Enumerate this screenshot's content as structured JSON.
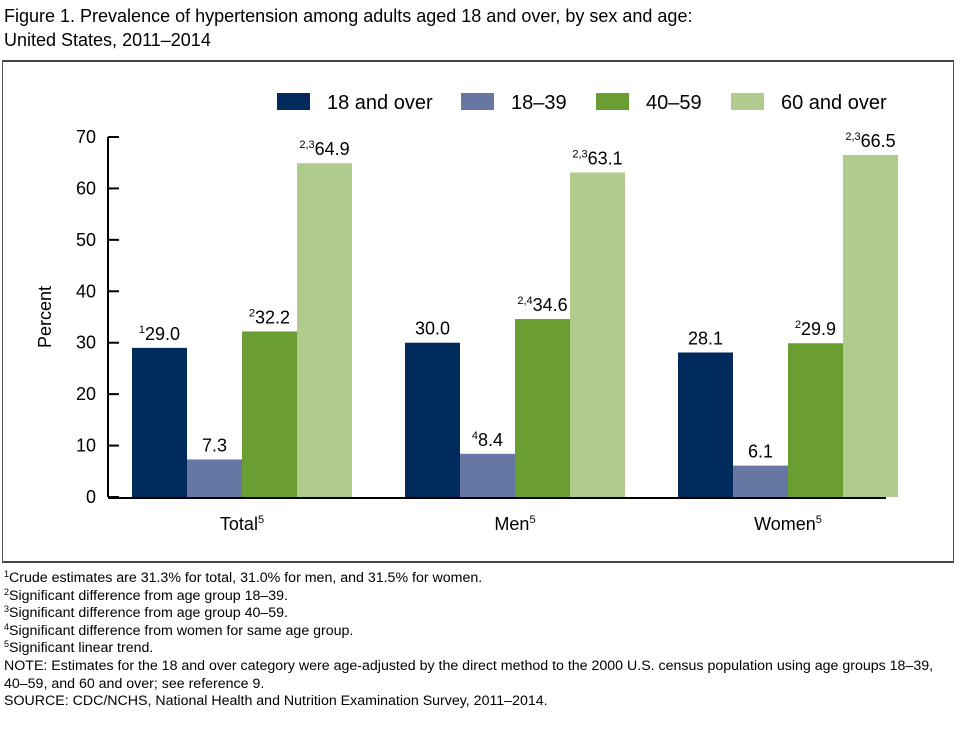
{
  "title_line1": "Figure 1. Prevalence of hypertension among adults aged 18 and over, by sex and age:",
  "title_line2": "United States, 2011–2014",
  "chart_data": {
    "type": "bar",
    "categories": [
      "Total",
      "Men",
      "Women"
    ],
    "category_superscripts": [
      "5",
      "5",
      "5"
    ],
    "ylabel": "Percent",
    "ylim": [
      0,
      70
    ],
    "yticks": [
      0,
      10,
      20,
      30,
      40,
      50,
      60,
      70
    ],
    "grid": false,
    "legend_position": "top",
    "series": [
      {
        "name": "18 and over",
        "color": "#002b5c",
        "values": [
          29.0,
          30.0,
          28.1
        ],
        "labels": [
          "29.0",
          "30.0",
          "28.1"
        ],
        "superscripts": [
          "1",
          "",
          ""
        ]
      },
      {
        "name": "18–39",
        "color": "#6577a2",
        "values": [
          7.3,
          8.4,
          6.1
        ],
        "labels": [
          "7.3",
          "8.4",
          "6.1"
        ],
        "superscripts": [
          "",
          "4",
          ""
        ]
      },
      {
        "name": "40–59",
        "color": "#6a9e32",
        "values": [
          32.2,
          34.6,
          29.9
        ],
        "labels": [
          "32.2",
          "34.6",
          "29.9"
        ],
        "superscripts": [
          "2",
          "2,4",
          "2"
        ]
      },
      {
        "name": "60 and over",
        "color": "#b0cb8e",
        "values": [
          64.9,
          63.1,
          66.5
        ],
        "labels": [
          "64.9",
          "63.1",
          "66.5"
        ],
        "superscripts": [
          "2,3",
          "2,3",
          "2,3"
        ]
      }
    ]
  },
  "footnotes": [
    {
      "mark": "1",
      "text": "Crude estimates are 31.3% for total, 31.0% for men, and 31.5% for women."
    },
    {
      "mark": "2",
      "text": "Significant difference from age group 18–39."
    },
    {
      "mark": "3",
      "text": "Significant difference from age group 40–59."
    },
    {
      "mark": "4",
      "text": "Significant difference from women for same age group."
    },
    {
      "mark": "5",
      "text": "Significant linear trend."
    }
  ],
  "note": "NOTE: Estimates for the 18 and over category were age-adjusted by the direct method to the 2000 U.S. census population using age groups 18–39, 40–59, and 60 and over; see reference 9.",
  "source": "SOURCE: CDC/NCHS, National Health and Nutrition Examination Survey, 2011–2014."
}
